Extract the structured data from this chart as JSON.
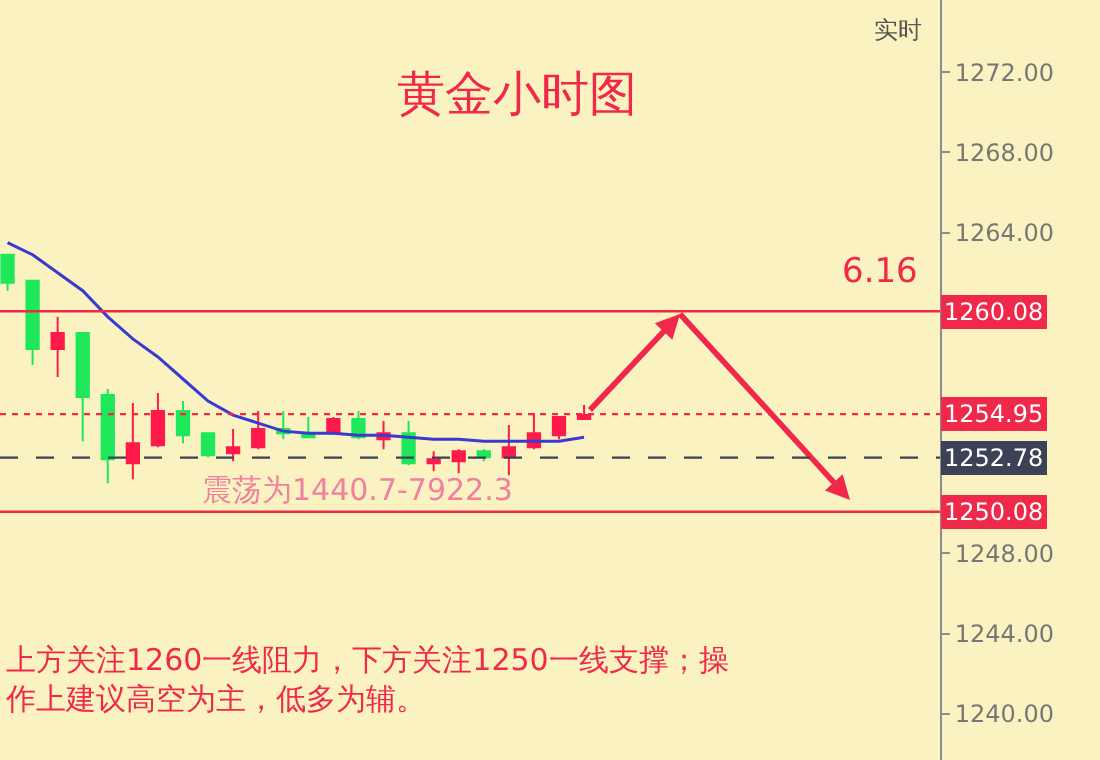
{
  "chart_data": {
    "type": "candlestick",
    "title": "黄金小时图",
    "categories": [
      null,
      null,
      null,
      null,
      null,
      null,
      null,
      null,
      null,
      null,
      null,
      null,
      null,
      null,
      null,
      null,
      null,
      null,
      null,
      null,
      null,
      null,
      null,
      null
    ],
    "ohlc": [
      [
        1262.9,
        1262.9,
        1261.1,
        1261.5
      ],
      [
        1261.6,
        1261.6,
        1257.4,
        1258.2
      ],
      [
        1258.2,
        1259.8,
        1256.8,
        1259.0
      ],
      [
        1259.0,
        1259.0,
        1253.6,
        1255.8
      ],
      [
        1255.9,
        1256.2,
        1251.5,
        1252.7
      ],
      [
        1252.5,
        1255.5,
        1251.7,
        1253.5
      ],
      [
        1253.4,
        1256.0,
        1253.3,
        1255.1
      ],
      [
        1255.1,
        1255.6,
        1253.5,
        1253.9
      ],
      [
        1254.0,
        1254.0,
        1252.8,
        1252.9
      ],
      [
        1253.0,
        1254.2,
        1252.6,
        1253.3
      ],
      [
        1253.3,
        1255.1,
        1253.2,
        1254.2
      ],
      [
        1254.2,
        1255.1,
        1253.7,
        1254.0
      ],
      [
        1254.0,
        1254.8,
        1253.8,
        1253.8
      ],
      [
        1254.0,
        1254.8,
        1254.0,
        1254.7
      ],
      [
        1254.7,
        1255.1,
        1253.7,
        1253.8
      ],
      [
        1253.7,
        1254.6,
        1253.2,
        1254.0
      ],
      [
        1254.0,
        1254.6,
        1252.4,
        1252.5
      ],
      [
        1252.5,
        1253.1,
        1252.1,
        1252.7
      ],
      [
        1252.6,
        1253.2,
        1252.0,
        1253.1
      ],
      [
        1253.1,
        1253.2,
        1252.6,
        1252.8
      ],
      [
        1252.8,
        1254.4,
        1251.9,
        1253.3
      ],
      [
        1253.3,
        1255.0,
        1253.2,
        1254.0
      ],
      [
        1253.9,
        1254.8,
        1253.7,
        1254.8
      ],
      [
        1254.7,
        1255.4,
        1254.7,
        1254.9
      ]
    ],
    "colors": [
      "#1ee85a",
      "#1ee85a",
      "#ff1a4b",
      "#1ee85a",
      "#1ee85a",
      "#ff1a4b",
      "#ff1a4b",
      "#1ee85a",
      "#1ee85a",
      "#ff1a4b",
      "#ff1a4b",
      "#1ee85a",
      "#1ee85a",
      "#ff1a4b",
      "#1ee85a",
      "#ff1a4b",
      "#1ee85a",
      "#ff1a4b",
      "#ff1a4b",
      "#1ee85a",
      "#ff1a4b",
      "#ff1a4b",
      "#ff1a4b",
      "#ff1a4b"
    ],
    "series": [
      {
        "type": "line",
        "color": "#3a3ad0",
        "values": [
          1263.5,
          1262.9,
          1262.0,
          1261.1,
          1259.8,
          1258.7,
          1257.8,
          1256.7,
          1255.6,
          1254.9,
          1254.5,
          1254.1,
          1254.0,
          1254.0,
          1253.9,
          1253.9,
          1253.8,
          1253.7,
          1253.7,
          1253.6,
          1253.6,
          1253.6,
          1253.6,
          1253.8
        ]
      }
    ],
    "ref_lines": [
      {
        "axis": "y",
        "value": 1260.08,
        "label": "1260.08",
        "color": "#f0284a",
        "line_style": "solid"
      },
      {
        "axis": "y",
        "value": 1254.95,
        "label": "1254.95",
        "color": "#f0284a",
        "line_style": "dotted"
      },
      {
        "axis": "y",
        "value": 1252.78,
        "label": "1252.78",
        "color": "#3b4255",
        "line_style": "dashed"
      },
      {
        "axis": "y",
        "value": 1250.08,
        "label": "1250.08",
        "color": "#f0284a",
        "line_style": "solid"
      }
    ],
    "annotations": [
      "实时",
      "震荡为1440.7-7922.3",
      "上方关注1260一线阻力，下方关注1250一线支撑；操作上建议高空为主，低多为辅。",
      "6.16"
    ],
    "ylim": [
      1237.7,
      1275.6
    ],
    "yticks": [
      {
        "value": 1240,
        "label": "1240.00"
      },
      {
        "value": 1244,
        "label": "1244.00"
      },
      {
        "value": 1248,
        "label": "1248.00"
      },
      {
        "value": 1264,
        "label": "1264.00"
      },
      {
        "value": 1268,
        "label": "1268.00"
      },
      {
        "value": 1272,
        "label": "1272.00"
      }
    ],
    "tick_labels": "y"
  }
}
